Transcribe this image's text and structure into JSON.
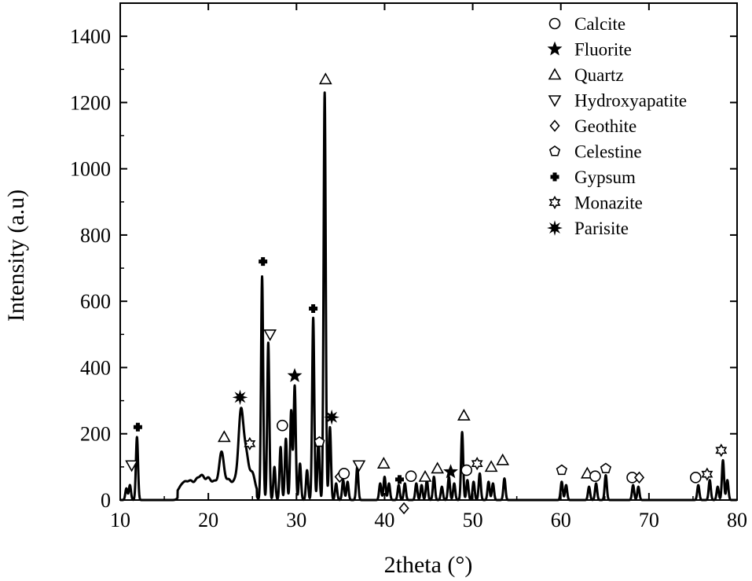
{
  "chart_data": {
    "type": "line",
    "xlabel": "2theta (°)",
    "ylabel": "Intensity (a.u)",
    "xlim": [
      10,
      80
    ],
    "ylim": [
      0,
      1500
    ],
    "x_ticks": [
      10,
      20,
      30,
      40,
      50,
      60,
      70,
      80
    ],
    "y_ticks": [
      0,
      200,
      400,
      600,
      800,
      1000,
      1200,
      1400
    ],
    "grid": false,
    "line_color": "#000000",
    "legend": {
      "placement": "top-right",
      "entries": [
        {
          "label": "Calcite",
          "marker": "circle-open"
        },
        {
          "label": "Fluorite",
          "marker": "star-filled"
        },
        {
          "label": "Quartz",
          "marker": "triangle-up-open"
        },
        {
          "label": "Hydroxyapatite",
          "marker": "triangle-down-open"
        },
        {
          "label": "Geothite",
          "marker": "diamond-open"
        },
        {
          "label": "Celestine",
          "marker": "pentagon-open"
        },
        {
          "label": "Gypsum",
          "marker": "cross-filled"
        },
        {
          "label": "Monazite",
          "marker": "hexagram-open"
        },
        {
          "label": "Parisite",
          "marker": "starburst-filled"
        }
      ]
    },
    "peaks": [
      {
        "x": 10.7,
        "y": 35
      },
      {
        "x": 11.1,
        "y": 45
      },
      {
        "x": 11.9,
        "y": 190
      },
      {
        "x": 16.9,
        "y": 40
      },
      {
        "x": 17.4,
        "y": 50
      },
      {
        "x": 18.0,
        "y": 55
      },
      {
        "x": 18.7,
        "y": 60
      },
      {
        "x": 19.3,
        "y": 70
      },
      {
        "x": 20.0,
        "y": 65
      },
      {
        "x": 20.7,
        "y": 55
      },
      {
        "x": 21.5,
        "y": 145
      },
      {
        "x": 22.3,
        "y": 60
      },
      {
        "x": 23.0,
        "y": 55
      },
      {
        "x": 23.7,
        "y": 265
      },
      {
        "x": 24.3,
        "y": 130
      },
      {
        "x": 25.0,
        "y": 80
      },
      {
        "x": 26.1,
        "y": 675
      },
      {
        "x": 26.8,
        "y": 475
      },
      {
        "x": 27.5,
        "y": 100
      },
      {
        "x": 28.2,
        "y": 160
      },
      {
        "x": 28.8,
        "y": 185
      },
      {
        "x": 29.4,
        "y": 270
      },
      {
        "x": 29.8,
        "y": 345
      },
      {
        "x": 30.4,
        "y": 110
      },
      {
        "x": 31.2,
        "y": 90
      },
      {
        "x": 31.9,
        "y": 550
      },
      {
        "x": 32.5,
        "y": 180
      },
      {
        "x": 33.2,
        "y": 1230
      },
      {
        "x": 33.8,
        "y": 220
      },
      {
        "x": 34.5,
        "y": 50
      },
      {
        "x": 35.3,
        "y": 60
      },
      {
        "x": 35.8,
        "y": 55
      },
      {
        "x": 36.9,
        "y": 100
      },
      {
        "x": 39.5,
        "y": 50
      },
      {
        "x": 40.0,
        "y": 70
      },
      {
        "x": 40.5,
        "y": 50
      },
      {
        "x": 41.6,
        "y": 45
      },
      {
        "x": 42.3,
        "y": 50
      },
      {
        "x": 43.6,
        "y": 50
      },
      {
        "x": 44.2,
        "y": 45
      },
      {
        "x": 44.8,
        "y": 60
      },
      {
        "x": 45.6,
        "y": 70
      },
      {
        "x": 46.5,
        "y": 40
      },
      {
        "x": 47.3,
        "y": 70
      },
      {
        "x": 47.9,
        "y": 50
      },
      {
        "x": 48.8,
        "y": 205
      },
      {
        "x": 49.4,
        "y": 60
      },
      {
        "x": 50.1,
        "y": 55
      },
      {
        "x": 50.8,
        "y": 80
      },
      {
        "x": 51.8,
        "y": 55
      },
      {
        "x": 52.3,
        "y": 50
      },
      {
        "x": 53.6,
        "y": 65
      },
      {
        "x": 60.1,
        "y": 55
      },
      {
        "x": 60.6,
        "y": 45
      },
      {
        "x": 63.2,
        "y": 40
      },
      {
        "x": 64.0,
        "y": 50
      },
      {
        "x": 65.1,
        "y": 75
      },
      {
        "x": 68.2,
        "y": 45
      },
      {
        "x": 68.8,
        "y": 40
      },
      {
        "x": 75.6,
        "y": 45
      },
      {
        "x": 76.9,
        "y": 60
      },
      {
        "x": 77.8,
        "y": 40
      },
      {
        "x": 78.4,
        "y": 120
      },
      {
        "x": 78.9,
        "y": 60
      }
    ],
    "phase_markers": [
      {
        "phase": "Hydroxyapatite",
        "x": 11.3,
        "y": 105
      },
      {
        "phase": "Gypsum",
        "x": 12.0,
        "y": 220
      },
      {
        "phase": "Quartz",
        "x": 21.8,
        "y": 190
      },
      {
        "phase": "Parisite",
        "x": 23.6,
        "y": 310
      },
      {
        "phase": "Monazite",
        "x": 24.7,
        "y": 170
      },
      {
        "phase": "Gypsum",
        "x": 26.2,
        "y": 720
      },
      {
        "phase": "Hydroxyapatite",
        "x": 27.0,
        "y": 500
      },
      {
        "phase": "Calcite",
        "x": 28.4,
        "y": 225
      },
      {
        "phase": "Fluorite",
        "x": 29.8,
        "y": 375
      },
      {
        "phase": "Gypsum",
        "x": 31.9,
        "y": 578
      },
      {
        "phase": "Celestine",
        "x": 32.6,
        "y": 175
      },
      {
        "phase": "Quartz",
        "x": 33.3,
        "y": 1270
      },
      {
        "phase": "Parisite",
        "x": 34.0,
        "y": 250
      },
      {
        "phase": "Geothite",
        "x": 34.9,
        "y": 70
      },
      {
        "phase": "Calcite",
        "x": 35.4,
        "y": 80
      },
      {
        "phase": "Hydroxyapatite",
        "x": 37.1,
        "y": 105
      },
      {
        "phase": "Quartz",
        "x": 39.9,
        "y": 110
      },
      {
        "phase": "Gypsum",
        "x": 41.7,
        "y": 62
      },
      {
        "phase": "Geothite",
        "x": 42.2,
        "y": -25
      },
      {
        "phase": "Calcite",
        "x": 43.0,
        "y": 72
      },
      {
        "phase": "Quartz",
        "x": 44.6,
        "y": 70
      },
      {
        "phase": "Quartz",
        "x": 46.0,
        "y": 95
      },
      {
        "phase": "Fluorite",
        "x": 47.5,
        "y": 85
      },
      {
        "phase": "Quartz",
        "x": 49.0,
        "y": 255
      },
      {
        "phase": "Calcite",
        "x": 49.3,
        "y": 90
      },
      {
        "phase": "Monazite",
        "x": 50.5,
        "y": 110
      },
      {
        "phase": "Quartz",
        "x": 52.1,
        "y": 100
      },
      {
        "phase": "Quartz",
        "x": 53.4,
        "y": 120
      },
      {
        "phase": "Celestine",
        "x": 60.1,
        "y": 90
      },
      {
        "phase": "Quartz",
        "x": 63.0,
        "y": 80
      },
      {
        "phase": "Calcite",
        "x": 63.9,
        "y": 72
      },
      {
        "phase": "Celestine",
        "x": 65.1,
        "y": 95
      },
      {
        "phase": "Calcite",
        "x": 68.1,
        "y": 68
      },
      {
        "phase": "Geothite",
        "x": 68.9,
        "y": 68
      },
      {
        "phase": "Calcite",
        "x": 75.3,
        "y": 68
      },
      {
        "phase": "Monazite",
        "x": 76.6,
        "y": 78
      },
      {
        "phase": "Monazite",
        "x": 78.2,
        "y": 150
      }
    ]
  }
}
